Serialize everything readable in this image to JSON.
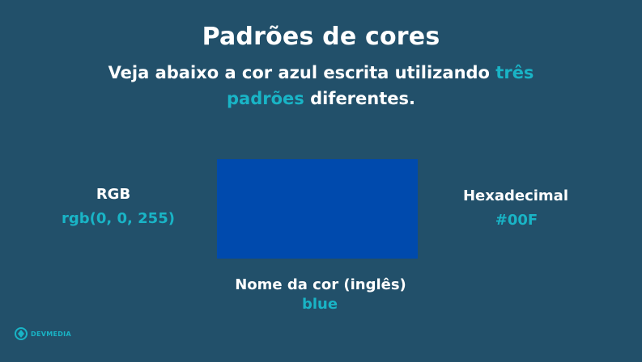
{
  "slide": {
    "title": "Padrões de cores",
    "subtitle": {
      "part1": "Veja abaixo a cor azul escrita utilizando ",
      "highlight": "três padrões",
      "part2": " diferentes."
    }
  },
  "swatch": {
    "color": "#004aad"
  },
  "rgb": {
    "label": "RGB",
    "value": "rgb(0, 0, 255)"
  },
  "hex": {
    "label": "Hexadecimal",
    "value": "#00F"
  },
  "color_name": {
    "label": "Nome da cor (inglês)",
    "value": "blue"
  },
  "brand": {
    "name": "DEVMEDIA",
    "accent": "#19b4c6",
    "background": "#22506a"
  }
}
